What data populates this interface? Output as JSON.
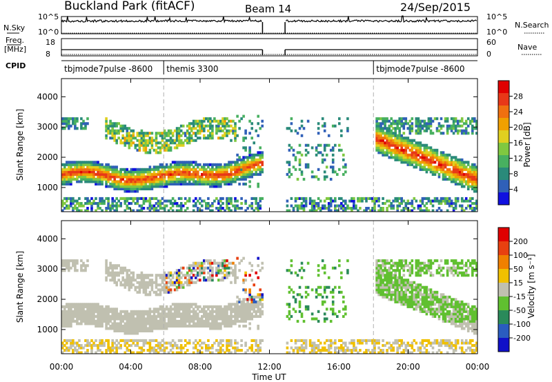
{
  "header": {
    "station": "Buckland Park (fitACF)",
    "beam": "Beam 14",
    "date": "24/Sep/2015"
  },
  "panels": {
    "nsky": {
      "label": "N.Sky",
      "ticks": [
        "10^5",
        "10^0"
      ],
      "right_label": "N.Search",
      "right_ticks": [
        "10^5",
        "10^0"
      ]
    },
    "freq": {
      "label_top": "Freq.",
      "label_bottom": "[MHz]",
      "ticks": [
        "18",
        "8"
      ],
      "right_label": "Nave",
      "right_ticks": [
        "60",
        "0"
      ]
    },
    "cpid": {
      "label": "CPID",
      "modes": [
        {
          "name": "tbjmode7pulse -8600",
          "start_hour": 0,
          "end_hour": 5.9
        },
        {
          "name": "themis 3300",
          "start_hour": 5.9,
          "end_hour": 18.0
        },
        {
          "name": "tbjmode7pulse -8600",
          "start_hour": 18.0,
          "end_hour": 24
        }
      ]
    }
  },
  "axes": {
    "x_ticks": [
      "00:00",
      "04:00",
      "08:00",
      "12:00",
      "16:00",
      "20:00",
      "00:00"
    ],
    "x_label": "Time UT",
    "y_label": "Slant Range [km]",
    "y_ticks": [
      "4000",
      "3000",
      "2000",
      "1000"
    ]
  },
  "colorbars": {
    "power": {
      "label": "Power [dB]",
      "ticks": [
        "28",
        "24",
        "20",
        "16",
        "12",
        "8",
        "4"
      ],
      "colors": [
        "#1010e0",
        "#3060b8",
        "#2a8a7a",
        "#48b060",
        "#80c840",
        "#e0d020",
        "#f0a000",
        "#f07010",
        "#e83818",
        "#e00000"
      ]
    },
    "velocity": {
      "label": "Velocity [m s⁻¹]",
      "ticks": [
        "200",
        "100",
        "50",
        "15",
        "-15",
        "-50",
        "-100",
        "-200"
      ],
      "colors": [
        "#1010c8",
        "#2a5cc0",
        "#2a8a5a",
        "#60c030",
        "#c0c0b0",
        "#f0c000",
        "#f08000",
        "#e84010",
        "#e00000"
      ]
    }
  },
  "chart_data": [
    {
      "type": "heatmap",
      "title": "Power",
      "xlabel": "Time UT",
      "ylabel": "Slant Range [km]",
      "xlim": [
        0,
        24
      ],
      "ylim": [
        200,
        4600
      ],
      "colorbar_label": "Power [dB]",
      "colorbar_range": [
        0,
        32
      ],
      "data_gap_hours": [
        11.6,
        12.9
      ],
      "features": [
        {
          "name": "main echo band",
          "hours": [
            0,
            11.5
          ],
          "range_km": [
            1000,
            1900
          ],
          "peak_power_db": 28
        },
        {
          "name": "far echo band",
          "hours": [
            2.5,
            10
          ],
          "range_km": [
            2500,
            3300
          ],
          "peak_power_db": 20
        },
        {
          "name": "scattered echoes",
          "hours": [
            12.9,
            16.5
          ],
          "range_km": [
            1200,
            2400
          ],
          "peak_power_db": 14
        },
        {
          "name": "evening echo band",
          "hours": [
            18,
            24
          ],
          "range_km": [
            1200,
            3300
          ],
          "peak_power_db": 28
        },
        {
          "name": "ground scatter near range",
          "hours": [
            0,
            24
          ],
          "range_km": [
            200,
            700
          ],
          "peak_power_db": 20
        }
      ]
    },
    {
      "type": "heatmap",
      "title": "Velocity",
      "xlabel": "Time UT",
      "ylabel": "Slant Range [km]",
      "xlim": [
        0,
        24
      ],
      "ylim": [
        200,
        4600
      ],
      "colorbar_label": "Velocity [m s⁻¹]",
      "colorbar_range": [
        -200,
        200
      ],
      "data_gap_hours": [
        11.6,
        12.9
      ]
    }
  ]
}
